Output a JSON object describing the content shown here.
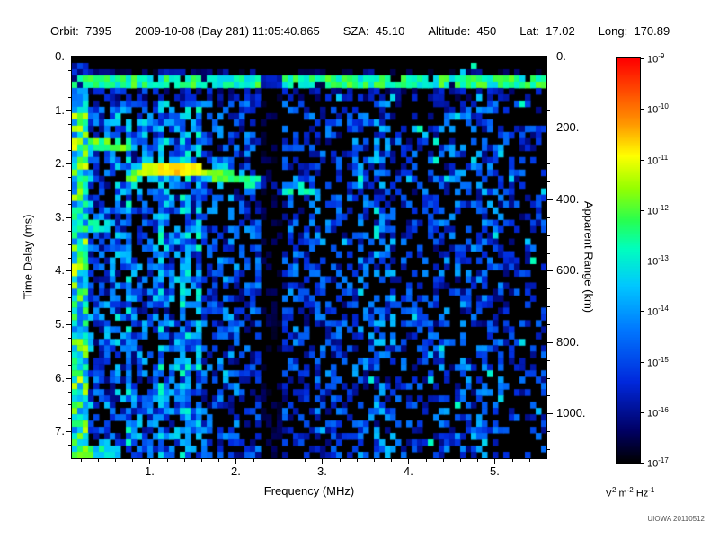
{
  "header": {
    "fields": [
      {
        "label": "Orbit:",
        "value": "7395"
      },
      {
        "label": "",
        "value": "2009-10-08 (Day 281) 11:05:40.865"
      },
      {
        "label": "SZA:",
        "value": "45.10"
      },
      {
        "label": "Altitude:",
        "value": "450"
      },
      {
        "label": "Lat:",
        "value": "17.02"
      },
      {
        "label": "Long:",
        "value": "170.89"
      }
    ]
  },
  "credit": "UIOWA 20110512",
  "chart_data": {
    "type": "heatmap",
    "title": "",
    "xlabel": "Frequency (MHz)",
    "ylabel_left": "Time Delay (ms)",
    "ylabel_right": "Apparent Range (km)",
    "x_range_mhz": [
      0.1,
      5.6
    ],
    "y_range_ms": [
      0.0,
      7.5
    ],
    "x_major_ticks": [
      {
        "value": 1,
        "label": "1."
      },
      {
        "value": 2,
        "label": "2."
      },
      {
        "value": 3,
        "label": "3."
      },
      {
        "value": 4,
        "label": "4."
      },
      {
        "value": 5,
        "label": "5."
      }
    ],
    "y_major_ticks": [
      {
        "value": 0,
        "label": "0."
      },
      {
        "value": 1,
        "label": "1."
      },
      {
        "value": 2,
        "label": "2."
      },
      {
        "value": 3,
        "label": "3."
      },
      {
        "value": 4,
        "label": "4."
      },
      {
        "value": 5,
        "label": "5."
      },
      {
        "value": 6,
        "label": "6."
      },
      {
        "value": 7,
        "label": "7."
      }
    ],
    "right_ticks": [
      {
        "value": 0,
        "label": "0."
      },
      {
        "value": 200,
        "label": "200."
      },
      {
        "value": 400,
        "label": "400."
      },
      {
        "value": 600,
        "label": "600."
      },
      {
        "value": 800,
        "label": "800."
      },
      {
        "value": 1000,
        "label": "1000."
      }
    ],
    "km_per_ms": 150,
    "colorbar": {
      "base": "10",
      "tick_exponents": [
        "-9",
        "-10",
        "-11",
        "-12",
        "-13",
        "-14",
        "-15",
        "-16",
        "-17"
      ],
      "unit_parts": [
        {
          "base": "V",
          "exp": "2"
        },
        {
          "base": "m",
          "exp": "-2"
        },
        {
          "base": "Hz",
          "exp": "-1"
        }
      ]
    },
    "colormap_stops": [
      [
        0.0,
        "#000000"
      ],
      [
        0.08,
        "#000064"
      ],
      [
        0.2,
        "#0028dc"
      ],
      [
        0.33,
        "#0078ff"
      ],
      [
        0.44,
        "#00c8ff"
      ],
      [
        0.53,
        "#00ffbe"
      ],
      [
        0.6,
        "#28ff50"
      ],
      [
        0.68,
        "#96ff00"
      ],
      [
        0.76,
        "#ffff00"
      ],
      [
        0.84,
        "#ff9600"
      ],
      [
        1.0,
        "#ff0000"
      ]
    ],
    "seed": 20110512,
    "features": {
      "top_blank_delay_ms": 0.24,
      "surface_band_delay_ms": [
        0.31,
        0.56
      ],
      "strong_left_edge_freq_mhz": 0.3,
      "plasma_stripe_freq_max_mhz": 1.6,
      "dark_band_freq_mhz": [
        2.28,
        2.52
      ],
      "harmonic_blob": {
        "freq_max_mhz": 0.8,
        "delay_ms": [
          1.55,
          1.8
        ]
      },
      "harmonic_blob2": {
        "freq_max_mhz": 0.55,
        "delay_ms": [
          3.05,
          3.3
        ]
      },
      "ionosphere_trace_points_mhz_ms": [
        [
          0.72,
          2.3
        ],
        [
          0.9,
          2.17
        ],
        [
          1.1,
          2.08
        ],
        [
          1.35,
          2.1
        ],
        [
          1.7,
          2.18
        ],
        [
          2.1,
          2.3
        ],
        [
          2.5,
          2.42
        ],
        [
          3.0,
          2.55
        ]
      ],
      "trace_peak_freq_mhz": 1.3,
      "high_freq_band_start_mhz": 3.2,
      "bottom_bright": {
        "freq_max_mhz": 0.65,
        "delay_min_ms": 7.25
      }
    }
  }
}
